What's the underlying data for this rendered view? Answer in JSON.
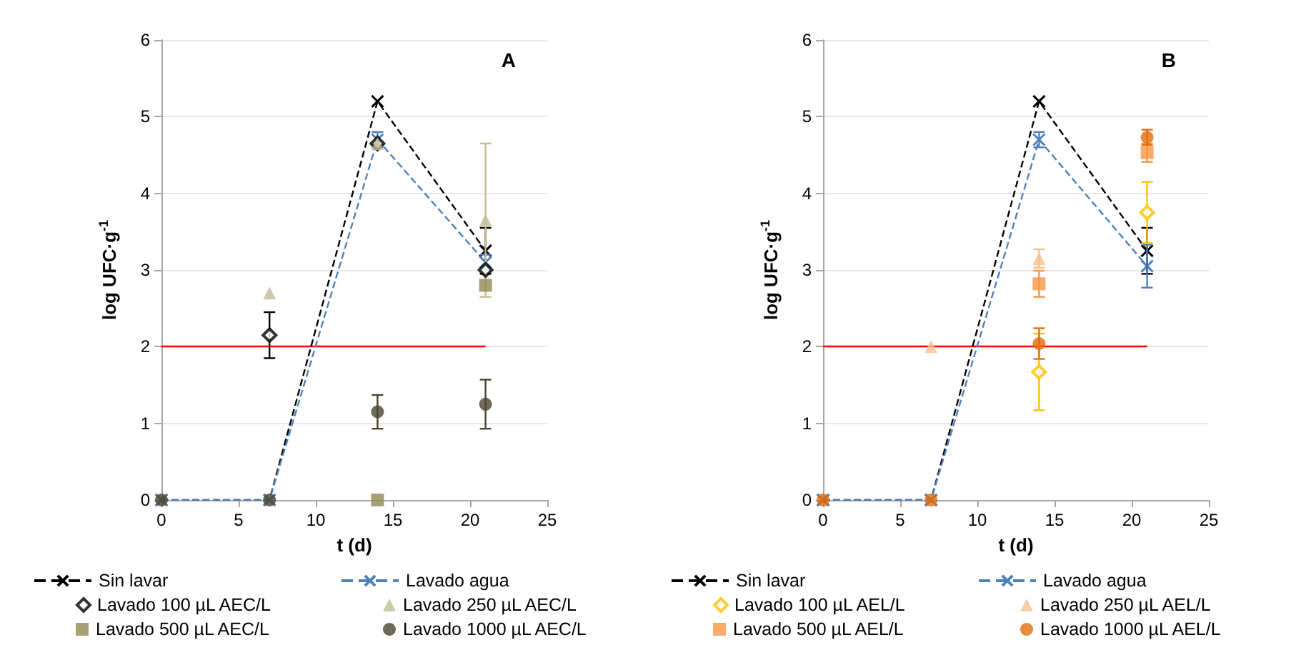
{
  "chart_data": [
    {
      "type": "scatter",
      "title": "A",
      "xlabel": "t (d)",
      "ylabel": "log UFC·g$^{-1}$",
      "xlim": [
        0,
        25
      ],
      "xticks": [
        0,
        5,
        10,
        15,
        20,
        25
      ],
      "ylim": [
        0,
        6
      ],
      "yticks": [
        0,
        1,
        2,
        3,
        4,
        5,
        6
      ],
      "grid": "y",
      "legend": "bottom",
      "x": [
        0,
        7,
        14,
        21
      ],
      "ref_lines": [
        {
          "axis": "y",
          "value": 2,
          "color": "#ff0000"
        }
      ],
      "series": [
        {
          "name": "Sin lavar",
          "type": "line",
          "line_style": "dashed",
          "marker": "cross",
          "color": "#000000",
          "values": [
            0,
            0,
            5.2,
            3.25
          ],
          "errors": [
            null,
            null,
            null,
            0.3
          ]
        },
        {
          "name": "Lavado agua",
          "type": "line",
          "line_style": "dashed",
          "marker": "cross",
          "color": "#4f81bd",
          "values": [
            0,
            0,
            4.7,
            3.1
          ],
          "errors": [
            null,
            null,
            0.1,
            0.1
          ]
        },
        {
          "name": "Lavado 100 µL AEC/L",
          "marker": "diamond",
          "color": "#000000",
          "values": [
            null,
            2.15,
            4.65,
            3.0
          ],
          "errors": [
            null,
            0.3,
            null,
            null
          ]
        },
        {
          "name": "Lavado 250 µL AEC/L",
          "marker": "triangle",
          "color": "#c4bc96",
          "values": [
            null,
            2.7,
            4.65,
            3.65
          ],
          "errors": [
            null,
            null,
            null,
            1.0
          ]
        },
        {
          "name": "Lavado 500 µL AEC/L",
          "marker": "square",
          "color": "#948a54",
          "values": [
            null,
            null,
            0,
            2.8
          ]
        },
        {
          "name": "Lavado 1000 µL AEC/L",
          "marker": "circle",
          "color": "#4a4530",
          "values": [
            0,
            0,
            1.15,
            1.25
          ],
          "errors": [
            null,
            null,
            0.22,
            0.32
          ]
        }
      ]
    },
    {
      "type": "scatter",
      "title": "B",
      "xlabel": "t (d)",
      "ylabel": "log UFC·g$^{-1}$",
      "xlim": [
        0,
        25
      ],
      "xticks": [
        0,
        5,
        10,
        15,
        20,
        25
      ],
      "ylim": [
        0,
        6
      ],
      "yticks": [
        0,
        1,
        2,
        3,
        4,
        5,
        6
      ],
      "grid": "y",
      "legend": "bottom",
      "x": [
        0,
        7,
        14,
        21
      ],
      "ref_lines": [
        {
          "axis": "y",
          "value": 2,
          "color": "#ff0000"
        }
      ],
      "series": [
        {
          "name": "Sin lavar",
          "type": "line",
          "line_style": "dashed",
          "marker": "cross",
          "color": "#000000",
          "values": [
            0,
            0,
            5.2,
            3.25
          ],
          "errors": [
            null,
            null,
            null,
            0.3
          ]
        },
        {
          "name": "Lavado agua",
          "type": "line",
          "line_style": "dashed",
          "marker": "cross",
          "color": "#4f81bd",
          "values": [
            0,
            0,
            4.7,
            3.05
          ],
          "errors": [
            null,
            null,
            0.1,
            0.28
          ]
        },
        {
          "name": "Lavado 100 µL AEL/L",
          "marker": "diamond",
          "color": "#ffc000",
          "values": [
            null,
            null,
            1.67,
            3.75
          ],
          "errors": [
            null,
            null,
            0.5,
            0.4
          ]
        },
        {
          "name": "Lavado 250 µL AEL/L",
          "marker": "triangle",
          "color": "#fac090",
          "values": [
            null,
            2.0,
            3.15,
            null
          ],
          "errors": [
            null,
            null,
            0.12,
            null
          ]
        },
        {
          "name": "Lavado 500 µL AEL/L",
          "marker": "square",
          "color": "#f79646",
          "values": [
            null,
            null,
            2.82,
            4.53
          ],
          "errors": [
            null,
            null,
            0.17,
            0.12
          ]
        },
        {
          "name": "Lavado 1000 µL AEL/L",
          "marker": "circle",
          "color": "#e36c09",
          "values": [
            0,
            0,
            2.04,
            4.73
          ],
          "errors": [
            null,
            null,
            0.2,
            0.1
          ]
        }
      ]
    }
  ]
}
